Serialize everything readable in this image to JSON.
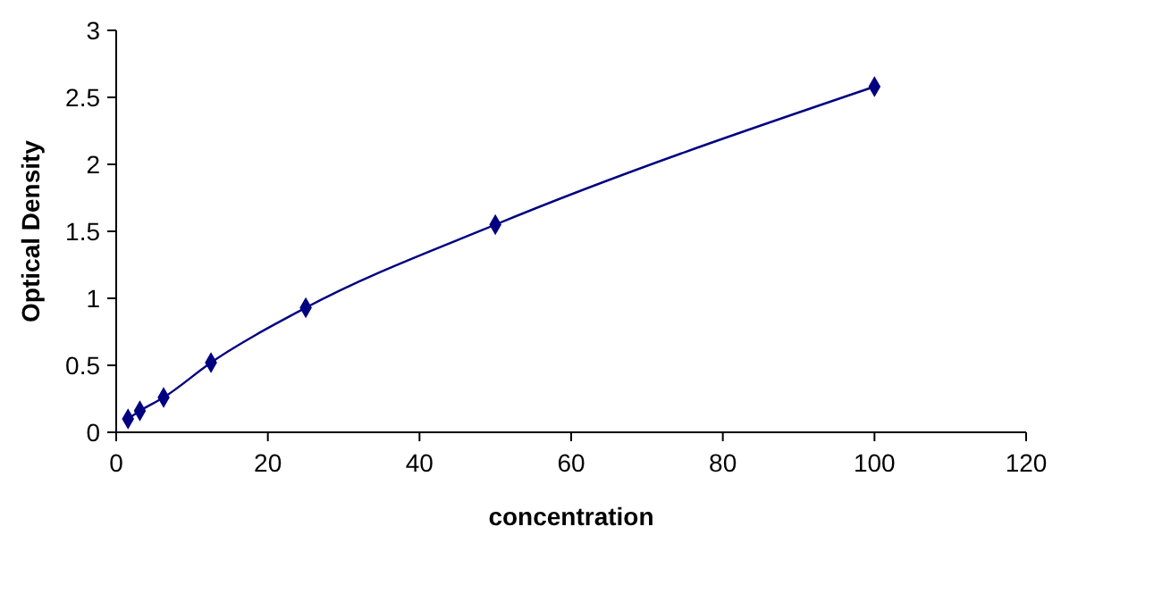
{
  "chart_data": {
    "type": "line",
    "xlabel": "concentration",
    "ylabel": "Optical Density",
    "x": [
      1.56,
      3.12,
      6.25,
      12.5,
      25,
      50,
      100
    ],
    "series": [
      {
        "color": "#000080",
        "values": [
          0.1,
          0.16,
          0.26,
          0.52,
          0.93,
          1.55,
          2.58
        ]
      }
    ],
    "xlim": [
      0,
      120
    ],
    "xticks": [
      0,
      20,
      40,
      60,
      80,
      100,
      120
    ],
    "ylim": [
      0,
      3
    ],
    "yticks": [
      0,
      0.5,
      1,
      1.5,
      2,
      2.5,
      3
    ],
    "marker": "diamond",
    "line_style": "solid",
    "grid": false
  }
}
